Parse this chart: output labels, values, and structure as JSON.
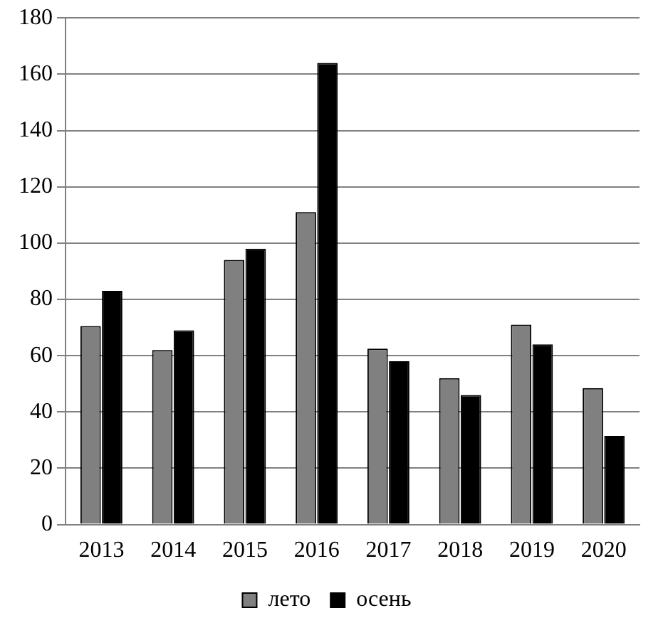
{
  "chart_data": {
    "type": "bar",
    "categories": [
      "2013",
      "2014",
      "2015",
      "2016",
      "2017",
      "2018",
      "2019",
      "2020"
    ],
    "series": [
      {
        "name": "лето",
        "color": "#808080",
        "values": [
          70.5,
          62,
          94,
          111,
          62.5,
          52,
          71,
          48.5
        ]
      },
      {
        "name": "осень",
        "color": "#000000",
        "values": [
          83,
          69,
          98,
          164,
          58,
          46,
          64,
          31.5
        ]
      }
    ],
    "ylim": [
      0,
      180
    ],
    "yticks": [
      0,
      20,
      40,
      60,
      80,
      100,
      120,
      140,
      160,
      180
    ],
    "grid": "y",
    "legend": "bottom"
  }
}
